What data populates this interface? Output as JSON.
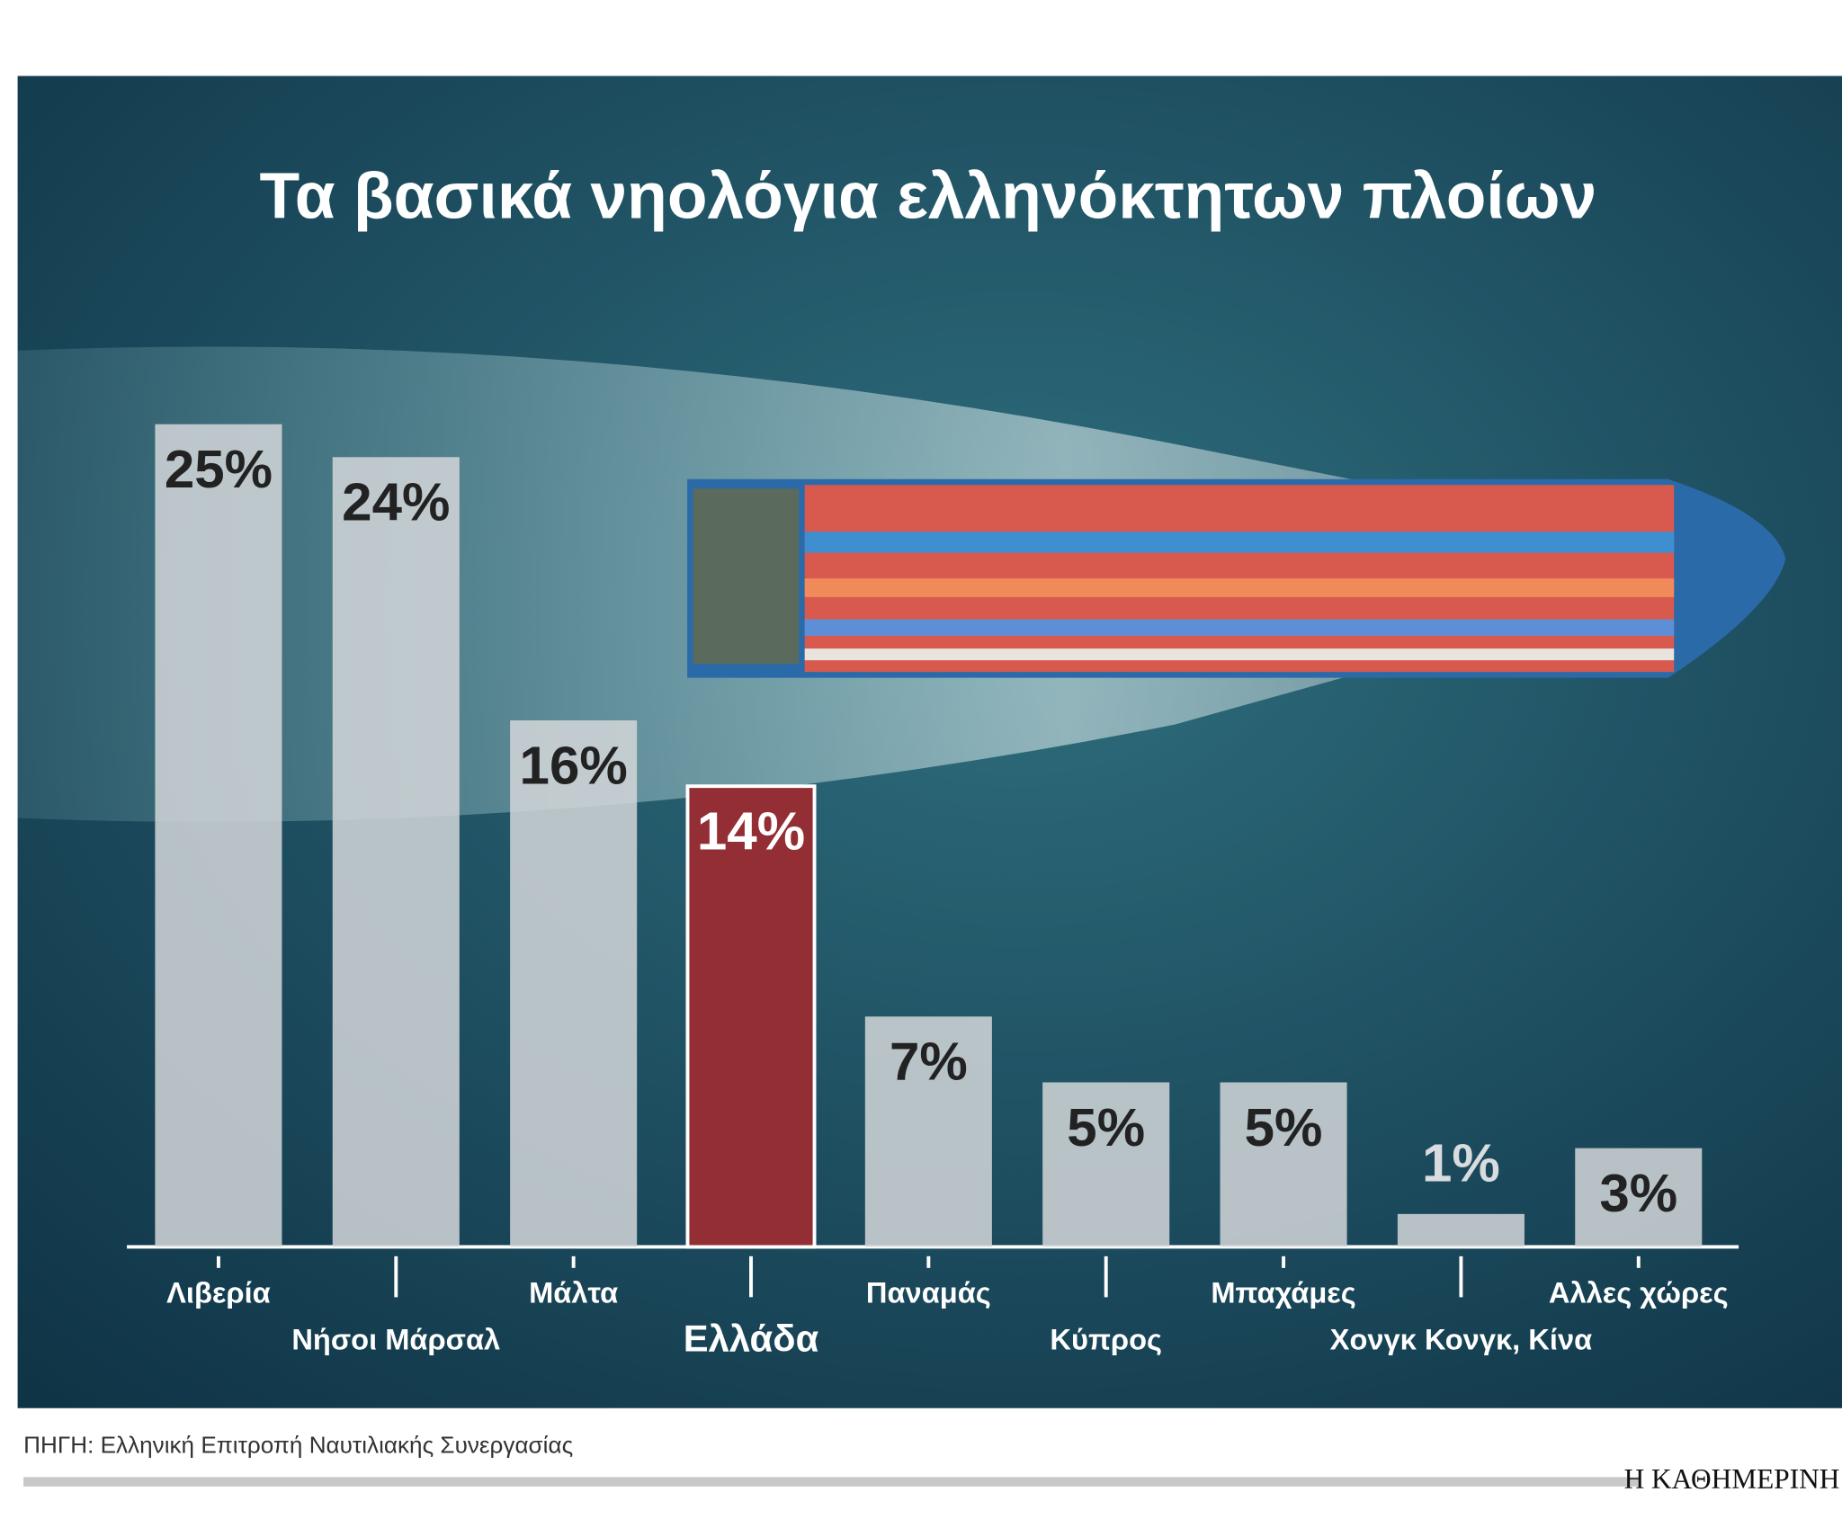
{
  "chart_data": {
    "type": "bar",
    "title": "Τα βασικά νηολόγια ελληνόκτητων πλοίων",
    "categories": [
      "Λιβερία",
      "Νήσοι Μάρσαλ",
      "Μάλτα",
      "Ελλάδα",
      "Παναμάς",
      "Κύπρος",
      "Μπαχάμες",
      "Χονγκ Κονγκ, Κίνα",
      "Αλλες χώρες"
    ],
    "values": [
      25,
      24,
      16,
      14,
      7,
      5,
      5,
      1,
      3
    ],
    "value_labels": [
      "25%",
      "24%",
      "16%",
      "14%",
      "7%",
      "5%",
      "5%",
      "1%",
      "3%"
    ],
    "colors": [
      "#d3d7d9",
      "#d3d7d9",
      "#d3d7d9",
      "#932e34",
      "#d3d7d9",
      "#d3d7d9",
      "#d3d7d9",
      "#d3d7d9",
      "#d3d7d9"
    ],
    "ylim": [
      0,
      25
    ],
    "source": "ΠΗΓΗ: Ελληνική  Επιτροπή  Ναυτιλιακής Συνεργασίας",
    "publisher": "Η ΚΑΘΗΜΕΡΙΝΗ"
  }
}
